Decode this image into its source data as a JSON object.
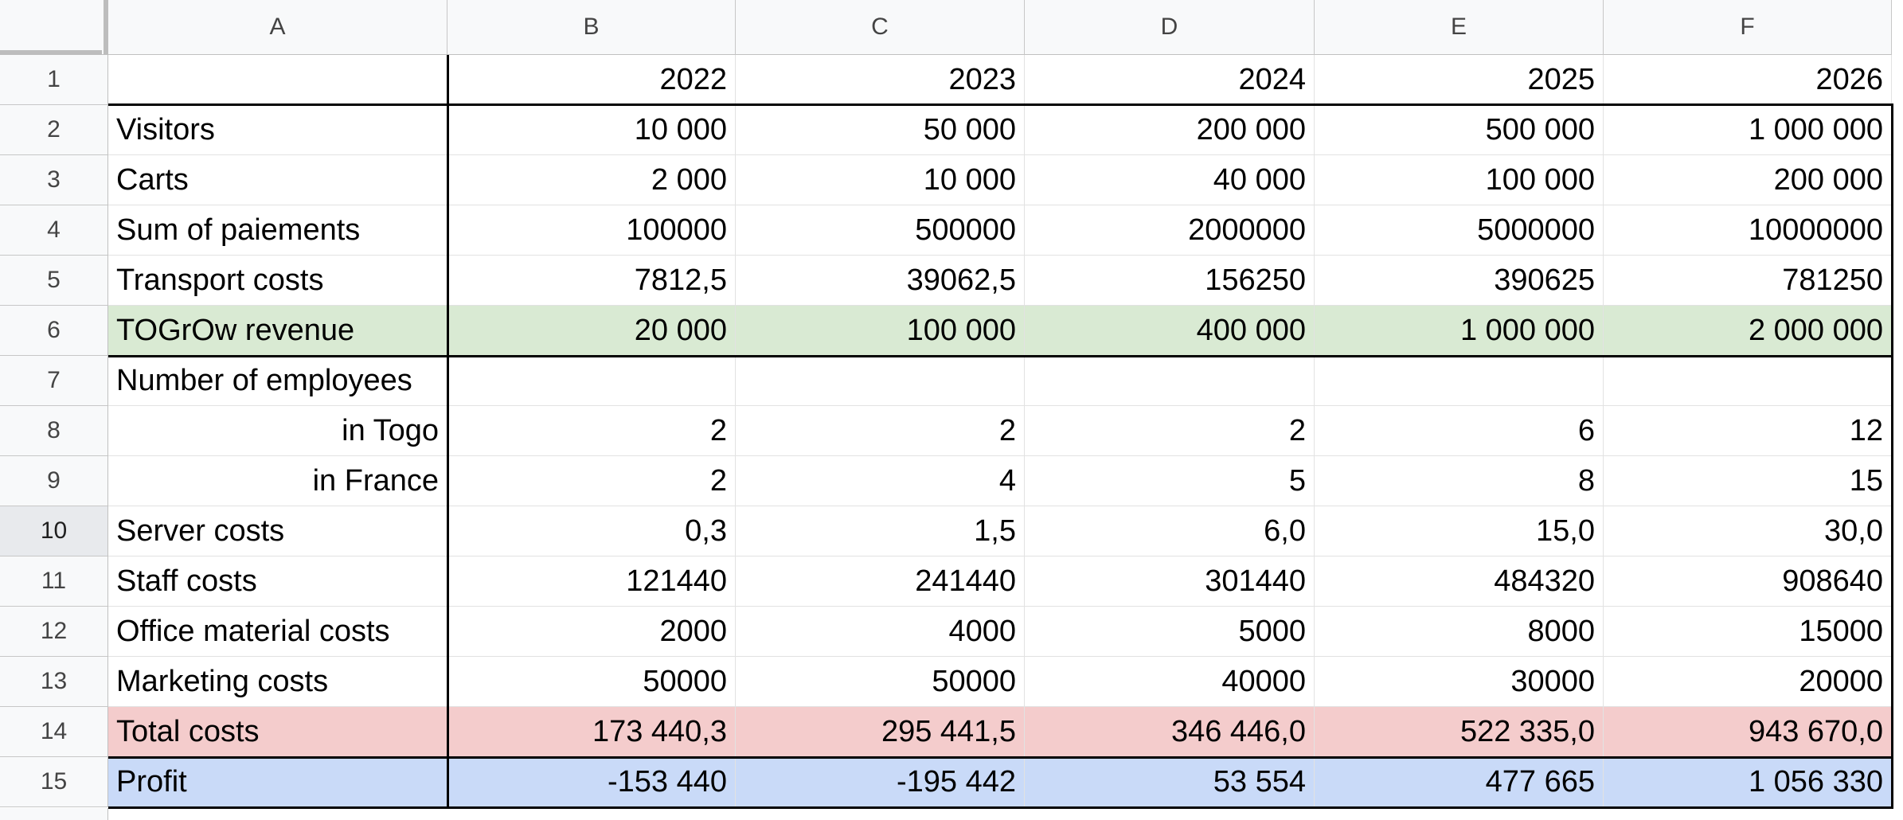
{
  "columns": [
    "A",
    "B",
    "C",
    "D",
    "E",
    "F"
  ],
  "rows": [
    {
      "num": "1",
      "label": "",
      "align": "left",
      "fill": "",
      "values": [
        "2022",
        "2023",
        "2024",
        "2025",
        "2026"
      ]
    },
    {
      "num": "2",
      "label": "Visitors",
      "align": "left",
      "fill": "",
      "values": [
        "10 000",
        "50 000",
        "200 000",
        "500 000",
        "1 000 000"
      ]
    },
    {
      "num": "3",
      "label": "Carts",
      "align": "left",
      "fill": "",
      "values": [
        "2 000",
        "10 000",
        "40 000",
        "100 000",
        "200 000"
      ]
    },
    {
      "num": "4",
      "label": "Sum of paiements",
      "align": "left",
      "fill": "",
      "values": [
        "100000",
        "500000",
        "2000000",
        "5000000",
        "10000000"
      ]
    },
    {
      "num": "5",
      "label": "Transport costs",
      "align": "left",
      "fill": "",
      "values": [
        "7812,5",
        "39062,5",
        "156250",
        "390625",
        "781250"
      ]
    },
    {
      "num": "6",
      "label": "TOGrOw revenue",
      "align": "left",
      "fill": "green",
      "values": [
        "20 000",
        "100 000",
        "400 000",
        "1 000 000",
        "2 000 000"
      ]
    },
    {
      "num": "7",
      "label": "Number of employees",
      "align": "left",
      "fill": "",
      "values": [
        "",
        "",
        "",
        "",
        ""
      ]
    },
    {
      "num": "8",
      "label": "in Togo",
      "align": "right",
      "fill": "",
      "values": [
        "2",
        "2",
        "2",
        "6",
        "12"
      ]
    },
    {
      "num": "9",
      "label": "in France",
      "align": "right",
      "fill": "",
      "values": [
        "2",
        "4",
        "5",
        "8",
        "15"
      ]
    },
    {
      "num": "10",
      "label": "Server costs",
      "align": "left",
      "fill": "",
      "values": [
        "0,3",
        "1,5",
        "6,0",
        "15,0",
        "30,0"
      ],
      "selected": true
    },
    {
      "num": "11",
      "label": "Staff costs",
      "align": "left",
      "fill": "",
      "values": [
        "121440",
        "241440",
        "301440",
        "484320",
        "908640"
      ]
    },
    {
      "num": "12",
      "label": "Office material costs",
      "align": "left",
      "fill": "",
      "values": [
        "2000",
        "4000",
        "5000",
        "8000",
        "15000"
      ]
    },
    {
      "num": "13",
      "label": "Marketing costs",
      "align": "left",
      "fill": "",
      "values": [
        "50000",
        "50000",
        "40000",
        "30000",
        "20000"
      ]
    },
    {
      "num": "14",
      "label": "Total costs",
      "align": "left",
      "fill": "red",
      "values": [
        "173 440,3",
        "295 441,5",
        "346 446,0",
        "522 335,0",
        "943 670,0"
      ]
    },
    {
      "num": "15",
      "label": "Profit",
      "align": "left",
      "fill": "blue",
      "values": [
        "-153 440",
        "-195 442",
        "53 554",
        "477 665",
        "1 056 330"
      ]
    }
  ],
  "colors": {
    "header_bg": "#f8f9fa",
    "revenue_fill": "#d9ead3",
    "costs_fill": "#f4cccc",
    "profit_fill": "#c9daf8"
  }
}
